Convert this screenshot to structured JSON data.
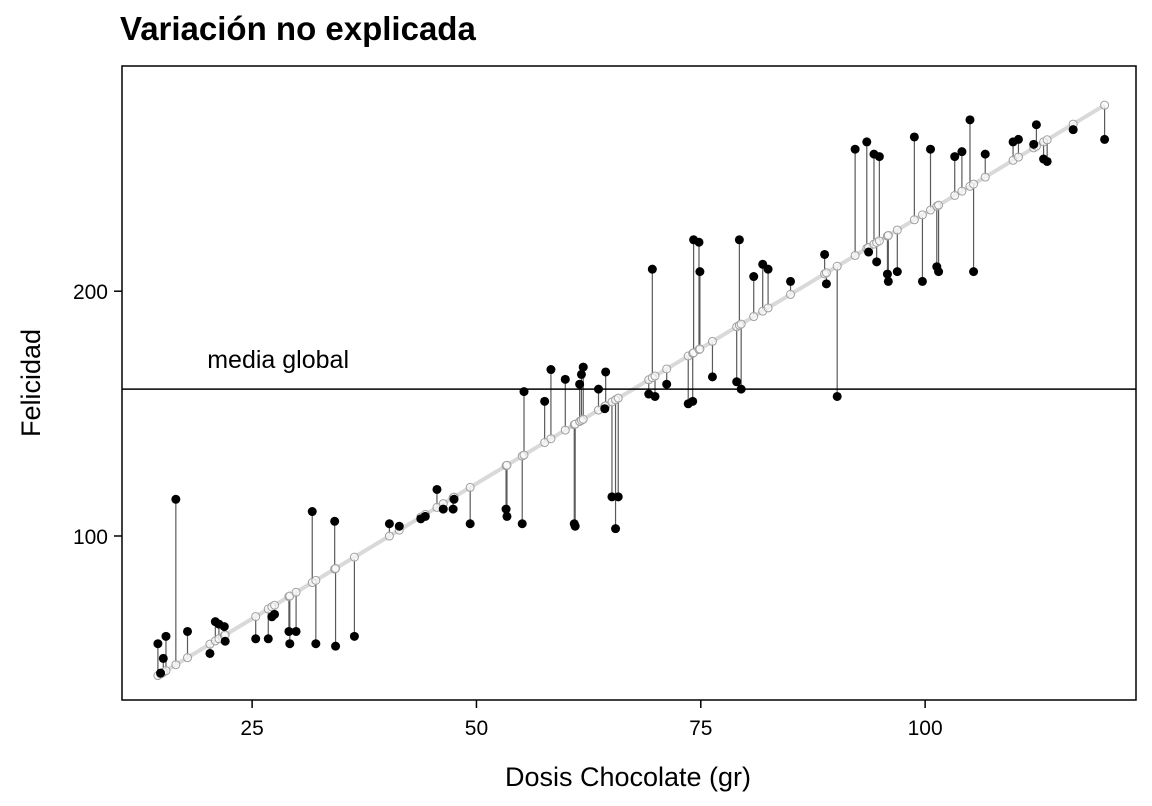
{
  "chart_data": {
    "type": "scatter",
    "title": "Variación no explicada",
    "xlabel": "Dosis Chocolate (gr)",
    "ylabel": "Felicidad",
    "xlim": [
      10.5,
      123.5
    ],
    "ylim": [
      33,
      292
    ],
    "xticks": [
      25,
      50,
      75,
      100
    ],
    "yticks": [
      100,
      200
    ],
    "grid": false,
    "reference_line": {
      "y": 160,
      "label": "media global"
    },
    "regression_line": {
      "x": [
        14.5,
        120
      ],
      "y": [
        43,
        276
      ]
    },
    "colors": {
      "observed": "#000000",
      "fitted_line": "#d9d9d9",
      "fitted_points": "#9e9e9e",
      "residuals": "#5a5a5a"
    },
    "points": [
      {
        "x": 14.5,
        "y": 56
      },
      {
        "x": 14.8,
        "y": 44
      },
      {
        "x": 15.1,
        "y": 50
      },
      {
        "x": 15.4,
        "y": 59
      },
      {
        "x": 16.5,
        "y": 115
      },
      {
        "x": 17.8,
        "y": 61
      },
      {
        "x": 20.3,
        "y": 52
      },
      {
        "x": 20.9,
        "y": 65
      },
      {
        "x": 21.3,
        "y": 64
      },
      {
        "x": 21.9,
        "y": 63
      },
      {
        "x": 22.0,
        "y": 57
      },
      {
        "x": 25.4,
        "y": 58
      },
      {
        "x": 26.8,
        "y": 58
      },
      {
        "x": 27.2,
        "y": 67
      },
      {
        "x": 27.5,
        "y": 68
      },
      {
        "x": 29.1,
        "y": 61
      },
      {
        "x": 29.2,
        "y": 56
      },
      {
        "x": 29.9,
        "y": 61
      },
      {
        "x": 31.7,
        "y": 110
      },
      {
        "x": 32.1,
        "y": 56
      },
      {
        "x": 34.2,
        "y": 106
      },
      {
        "x": 34.3,
        "y": 55
      },
      {
        "x": 36.4,
        "y": 59
      },
      {
        "x": 40.3,
        "y": 105
      },
      {
        "x": 41.4,
        "y": 104
      },
      {
        "x": 43.8,
        "y": 107
      },
      {
        "x": 44.3,
        "y": 108
      },
      {
        "x": 45.6,
        "y": 119
      },
      {
        "x": 46.3,
        "y": 111
      },
      {
        "x": 47.4,
        "y": 111
      },
      {
        "x": 47.5,
        "y": 115
      },
      {
        "x": 49.3,
        "y": 105
      },
      {
        "x": 53.3,
        "y": 111
      },
      {
        "x": 53.4,
        "y": 108
      },
      {
        "x": 55.1,
        "y": 105
      },
      {
        "x": 55.3,
        "y": 159
      },
      {
        "x": 57.6,
        "y": 155
      },
      {
        "x": 58.3,
        "y": 168
      },
      {
        "x": 59.9,
        "y": 164
      },
      {
        "x": 60.9,
        "y": 105
      },
      {
        "x": 61.0,
        "y": 104
      },
      {
        "x": 61.5,
        "y": 162
      },
      {
        "x": 61.7,
        "y": 166
      },
      {
        "x": 61.9,
        "y": 169
      },
      {
        "x": 63.6,
        "y": 160
      },
      {
        "x": 64.3,
        "y": 152
      },
      {
        "x": 64.4,
        "y": 167
      },
      {
        "x": 65.1,
        "y": 116
      },
      {
        "x": 65.5,
        "y": 103
      },
      {
        "x": 65.8,
        "y": 116
      },
      {
        "x": 69.2,
        "y": 158
      },
      {
        "x": 69.6,
        "y": 209
      },
      {
        "x": 69.9,
        "y": 157
      },
      {
        "x": 71.2,
        "y": 162
      },
      {
        "x": 73.6,
        "y": 154
      },
      {
        "x": 74.1,
        "y": 155
      },
      {
        "x": 74.2,
        "y": 221
      },
      {
        "x": 74.8,
        "y": 220
      },
      {
        "x": 74.9,
        "y": 208
      },
      {
        "x": 76.3,
        "y": 165
      },
      {
        "x": 79.0,
        "y": 163
      },
      {
        "x": 79.3,
        "y": 221
      },
      {
        "x": 79.5,
        "y": 160
      },
      {
        "x": 80.9,
        "y": 206
      },
      {
        "x": 81.9,
        "y": 211
      },
      {
        "x": 82.5,
        "y": 209
      },
      {
        "x": 85.0,
        "y": 204
      },
      {
        "x": 88.8,
        "y": 215
      },
      {
        "x": 89.0,
        "y": 203
      },
      {
        "x": 90.2,
        "y": 157
      },
      {
        "x": 92.2,
        "y": 258
      },
      {
        "x": 93.5,
        "y": 261
      },
      {
        "x": 93.7,
        "y": 216
      },
      {
        "x": 94.3,
        "y": 256
      },
      {
        "x": 94.6,
        "y": 212
      },
      {
        "x": 94.9,
        "y": 255
      },
      {
        "x": 95.8,
        "y": 207
      },
      {
        "x": 95.9,
        "y": 204
      },
      {
        "x": 96.9,
        "y": 208
      },
      {
        "x": 98.8,
        "y": 263
      },
      {
        "x": 99.7,
        "y": 204
      },
      {
        "x": 100.6,
        "y": 258
      },
      {
        "x": 101.3,
        "y": 210
      },
      {
        "x": 101.5,
        "y": 208
      },
      {
        "x": 103.3,
        "y": 255
      },
      {
        "x": 104.1,
        "y": 257
      },
      {
        "x": 105.0,
        "y": 270
      },
      {
        "x": 105.4,
        "y": 208
      },
      {
        "x": 106.7,
        "y": 256
      },
      {
        "x": 109.8,
        "y": 261
      },
      {
        "x": 110.4,
        "y": 262
      },
      {
        "x": 112.1,
        "y": 260
      },
      {
        "x": 112.4,
        "y": 268
      },
      {
        "x": 113.2,
        "y": 254
      },
      {
        "x": 113.6,
        "y": 253
      },
      {
        "x": 116.5,
        "y": 266
      },
      {
        "x": 120.0,
        "y": 262
      }
    ]
  }
}
